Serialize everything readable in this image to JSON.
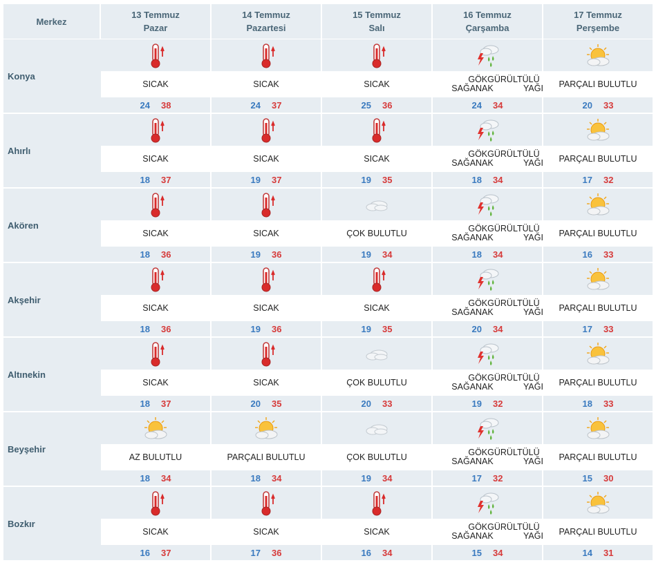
{
  "header": {
    "merkez_label": "Merkez",
    "days": [
      {
        "date": "13 Temmuz",
        "weekday": "Pazar"
      },
      {
        "date": "14 Temmuz",
        "weekday": "Pazartesi"
      },
      {
        "date": "15 Temmuz",
        "weekday": "Salı"
      },
      {
        "date": "16 Temmuz",
        "weekday": "Çarşamba"
      },
      {
        "date": "17 Temmuz",
        "weekday": "Perşembe"
      }
    ]
  },
  "rows": [
    {
      "city": "Konya",
      "days": [
        {
          "icon": "thermometer-hot-icon",
          "cond": "SICAK",
          "min": "24",
          "max": "38"
        },
        {
          "icon": "thermometer-hot-icon",
          "cond": "SICAK",
          "min": "24",
          "max": "37"
        },
        {
          "icon": "thermometer-hot-icon",
          "cond": "SICAK",
          "min": "25",
          "max": "36"
        },
        {
          "icon": "thunderstorm-rain-icon",
          "cond": "GÖKGÜRÜLTÜLÜ SAĞANAK YAĞIŞLI",
          "min": "24",
          "max": "34"
        },
        {
          "icon": "partly-cloudy-icon",
          "cond": "PARÇALI BULUTLU",
          "min": "20",
          "max": "33"
        }
      ]
    },
    {
      "city": "Ahırlı",
      "days": [
        {
          "icon": "thermometer-hot-icon",
          "cond": "SICAK",
          "min": "18",
          "max": "37"
        },
        {
          "icon": "thermometer-hot-icon",
          "cond": "SICAK",
          "min": "19",
          "max": "37"
        },
        {
          "icon": "thermometer-hot-icon",
          "cond": "SICAK",
          "min": "19",
          "max": "35"
        },
        {
          "icon": "thunderstorm-rain-icon",
          "cond": "GÖKGÜRÜLTÜLÜ SAĞANAK YAĞIŞLI",
          "min": "18",
          "max": "34"
        },
        {
          "icon": "partly-cloudy-icon",
          "cond": "PARÇALI BULUTLU",
          "min": "17",
          "max": "32"
        }
      ]
    },
    {
      "city": "Akören",
      "days": [
        {
          "icon": "thermometer-hot-icon",
          "cond": "SICAK",
          "min": "18",
          "max": "36"
        },
        {
          "icon": "thermometer-hot-icon",
          "cond": "SICAK",
          "min": "19",
          "max": "36"
        },
        {
          "icon": "cloudy-icon",
          "cond": "ÇOK BULUTLU",
          "min": "19",
          "max": "34"
        },
        {
          "icon": "thunderstorm-rain-icon",
          "cond": "GÖKGÜRÜLTÜLÜ SAĞANAK YAĞIŞLI",
          "min": "18",
          "max": "34"
        },
        {
          "icon": "partly-cloudy-icon",
          "cond": "PARÇALI BULUTLU",
          "min": "16",
          "max": "33"
        }
      ]
    },
    {
      "city": "Akşehir",
      "days": [
        {
          "icon": "thermometer-hot-icon",
          "cond": "SICAK",
          "min": "18",
          "max": "36"
        },
        {
          "icon": "thermometer-hot-icon",
          "cond": "SICAK",
          "min": "19",
          "max": "36"
        },
        {
          "icon": "thermometer-hot-icon",
          "cond": "SICAK",
          "min": "19",
          "max": "35"
        },
        {
          "icon": "thunderstorm-rain-icon",
          "cond": "GÖKGÜRÜLTÜLÜ SAĞANAK YAĞIŞLI",
          "min": "20",
          "max": "34"
        },
        {
          "icon": "partly-cloudy-icon",
          "cond": "PARÇALI BULUTLU",
          "min": "17",
          "max": "33"
        }
      ]
    },
    {
      "city": "Altınekin",
      "days": [
        {
          "icon": "thermometer-hot-icon",
          "cond": "SICAK",
          "min": "18",
          "max": "37"
        },
        {
          "icon": "thermometer-hot-icon",
          "cond": "SICAK",
          "min": "20",
          "max": "35"
        },
        {
          "icon": "cloudy-icon",
          "cond": "ÇOK BULUTLU",
          "min": "20",
          "max": "33"
        },
        {
          "icon": "thunderstorm-rain-icon",
          "cond": "GÖKGÜRÜLTÜLÜ SAĞANAK YAĞIŞLI",
          "min": "19",
          "max": "32"
        },
        {
          "icon": "partly-cloudy-icon",
          "cond": "PARÇALI BULUTLU",
          "min": "18",
          "max": "33"
        }
      ]
    },
    {
      "city": "Beyşehir",
      "days": [
        {
          "icon": "partly-cloudy-icon",
          "cond": "AZ BULUTLU",
          "min": "18",
          "max": "34"
        },
        {
          "icon": "partly-cloudy-icon",
          "cond": "PARÇALI BULUTLU",
          "min": "18",
          "max": "34"
        },
        {
          "icon": "cloudy-icon",
          "cond": "ÇOK BULUTLU",
          "min": "19",
          "max": "34"
        },
        {
          "icon": "thunderstorm-rain-icon",
          "cond": "GÖKGÜRÜLTÜLÜ SAĞANAK YAĞIŞLI",
          "min": "17",
          "max": "32"
        },
        {
          "icon": "partly-cloudy-icon",
          "cond": "PARÇALI BULUTLU",
          "min": "15",
          "max": "30"
        }
      ]
    },
    {
      "city": "Bozkır",
      "days": [
        {
          "icon": "thermometer-hot-icon",
          "cond": "SICAK",
          "min": "16",
          "max": "37"
        },
        {
          "icon": "thermometer-hot-icon",
          "cond": "SICAK",
          "min": "17",
          "max": "36"
        },
        {
          "icon": "thermometer-hot-icon",
          "cond": "SICAK",
          "min": "16",
          "max": "34"
        },
        {
          "icon": "thunderstorm-rain-icon",
          "cond": "GÖKGÜRÜLTÜLÜ SAĞANAK YAĞIŞLI",
          "min": "15",
          "max": "34"
        },
        {
          "icon": "partly-cloudy-icon",
          "cond": "PARÇALI BULUTLU",
          "min": "14",
          "max": "31"
        }
      ]
    }
  ],
  "colors": {
    "band": "#e7edf2",
    "header_text": "#4a6677",
    "min_temp": "#3a7abf",
    "max_temp": "#d63a3a"
  }
}
